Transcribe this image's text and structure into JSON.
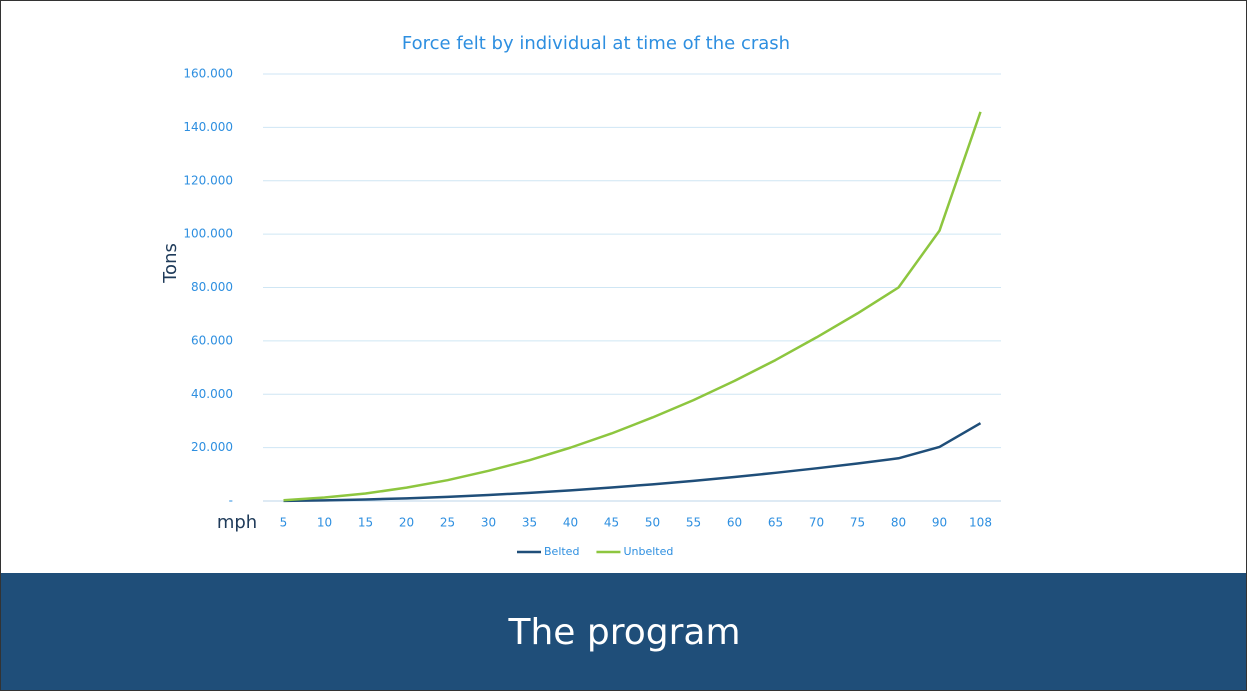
{
  "chart_data": {
    "type": "line",
    "title": "Force felt by individual at time of the crash",
    "y_label": "Tons",
    "x_label": "mph",
    "categories": [
      5,
      10,
      15,
      20,
      25,
      30,
      35,
      40,
      45,
      50,
      55,
      60,
      65,
      70,
      75,
      80,
      90,
      108
    ],
    "series": [
      {
        "name": "Belted",
        "color": "#1f4e79",
        "values": [
          60,
          250,
          560,
          1000,
          1560,
          2250,
          3060,
          4000,
          5060,
          6250,
          7560,
          9000,
          10560,
          12250,
          14060,
          16000,
          20250,
          29160
        ]
      },
      {
        "name": "Unbelted",
        "color": "#8dc63f",
        "values": [
          300,
          1300,
          2800,
          5000,
          7800,
          11300,
          15300,
          20000,
          25300,
          31300,
          37800,
          45000,
          52800,
          61300,
          70300,
          80000,
          101300,
          145800
        ]
      }
    ],
    "ylim": [
      0,
      160000
    ],
    "yticks": [
      {
        "value": 0,
        "label": "-"
      },
      {
        "value": 20000,
        "label": "20.000"
      },
      {
        "value": 40000,
        "label": "40.000"
      },
      {
        "value": 60000,
        "label": "60.000"
      },
      {
        "value": 80000,
        "label": "80.000"
      },
      {
        "value": 100000,
        "label": "100.000"
      },
      {
        "value": 120000,
        "label": "120.000"
      },
      {
        "value": 140000,
        "label": "140.000"
      },
      {
        "value": 160000,
        "label": "160.000"
      }
    ],
    "grid": true,
    "legend": "bottom"
  },
  "slide": {
    "banner": "The program"
  }
}
